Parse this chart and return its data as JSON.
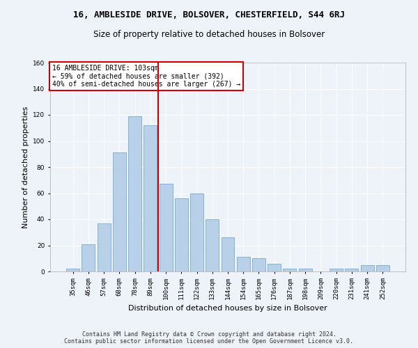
{
  "title": "16, AMBLESIDE DRIVE, BOLSOVER, CHESTERFIELD, S44 6RJ",
  "subtitle": "Size of property relative to detached houses in Bolsover",
  "xlabel": "Distribution of detached houses by size in Bolsover",
  "ylabel": "Number of detached properties",
  "categories": [
    "35sqm",
    "46sqm",
    "57sqm",
    "68sqm",
    "78sqm",
    "89sqm",
    "100sqm",
    "111sqm",
    "122sqm",
    "133sqm",
    "144sqm",
    "154sqm",
    "165sqm",
    "176sqm",
    "187sqm",
    "198sqm",
    "209sqm",
    "220sqm",
    "231sqm",
    "241sqm",
    "252sqm"
  ],
  "values": [
    2,
    21,
    37,
    91,
    119,
    112,
    67,
    56,
    60,
    40,
    26,
    11,
    10,
    6,
    2,
    2,
    0,
    2,
    2,
    5,
    5
  ],
  "bar_color": "#b8d0e8",
  "bar_edge_color": "#7aaace",
  "ylim": [
    0,
    160
  ],
  "yticks": [
    0,
    20,
    40,
    60,
    80,
    100,
    120,
    140,
    160
  ],
  "vline_x_index": 6,
  "vline_color": "#cc0000",
  "annotation_text": "16 AMBLESIDE DRIVE: 103sqm\n← 59% of detached houses are smaller (392)\n40% of semi-detached houses are larger (267) →",
  "annotation_box_color": "#ffffff",
  "annotation_box_edge_color": "#cc0000",
  "footer_line1": "Contains HM Land Registry data © Crown copyright and database right 2024.",
  "footer_line2": "Contains public sector information licensed under the Open Government Licence v3.0.",
  "background_color": "#eef2f9",
  "grid_color": "#ffffff",
  "title_fontsize": 9,
  "subtitle_fontsize": 8.5,
  "tick_fontsize": 6.5,
  "ylabel_fontsize": 8,
  "xlabel_fontsize": 8,
  "footer_fontsize": 6,
  "annotation_fontsize": 7
}
